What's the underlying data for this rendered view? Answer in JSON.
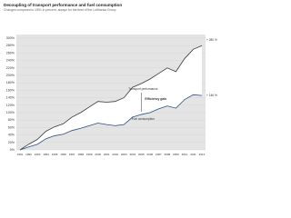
{
  "chart_data": {
    "type": "line",
    "title": "Decoupling of transport performance and fuel consumption",
    "subtitle": "Changes compared to 1991 in percent, always for the fleet of the Lufthansa Group",
    "categories": [
      "1991",
      "1992",
      "1993",
      "1994",
      "1995",
      "1996",
      "1997",
      "1998",
      "1999",
      "2000",
      "2001",
      "2002",
      "2003",
      "2004",
      "2005",
      "2006",
      "2007",
      "2008",
      "2009",
      "2010",
      "2011",
      "2012"
    ],
    "series": [
      {
        "name": "Transport performance",
        "color": "#3a3a3a",
        "values": [
          0,
          15,
          28,
          50,
          62,
          70,
          88,
          100,
          115,
          130,
          128,
          130,
          140,
          168,
          178,
          190,
          205,
          220,
          210,
          245,
          270,
          280
        ]
      },
      {
        "name": "Fuel consumption",
        "color": "#2b4f86",
        "values": [
          0,
          8,
          15,
          30,
          38,
          42,
          52,
          58,
          65,
          72,
          68,
          65,
          68,
          88,
          95,
          100,
          110,
          118,
          112,
          135,
          148,
          146
        ]
      }
    ],
    "annotations": {
      "efficiency": "Efficiency gain",
      "end_top": "+ 280 %",
      "end_bottom": "+ 146 %"
    },
    "ylim": [
      0,
      300
    ],
    "yticks": [
      {
        "value": 0,
        "label": "0%"
      },
      {
        "value": 20,
        "label": "20%"
      },
      {
        "value": 40,
        "label": "40%"
      },
      {
        "value": 60,
        "label": "60%"
      },
      {
        "value": 80,
        "label": "80%"
      },
      {
        "value": 100,
        "label": "100%"
      },
      {
        "value": 120,
        "label": "120%"
      },
      {
        "value": 140,
        "label": "140%"
      },
      {
        "value": 160,
        "label": "160%"
      },
      {
        "value": 180,
        "label": "180%"
      },
      {
        "value": 200,
        "label": "200%"
      },
      {
        "value": 220,
        "label": "220%"
      },
      {
        "value": 240,
        "label": "240%"
      },
      {
        "value": 260,
        "label": "260%"
      },
      {
        "value": 280,
        "label": "280%"
      },
      {
        "value": 300,
        "label": "300%"
      }
    ],
    "grid": true,
    "background": "#e4e4e4",
    "gap_fill": "#ffffff"
  }
}
